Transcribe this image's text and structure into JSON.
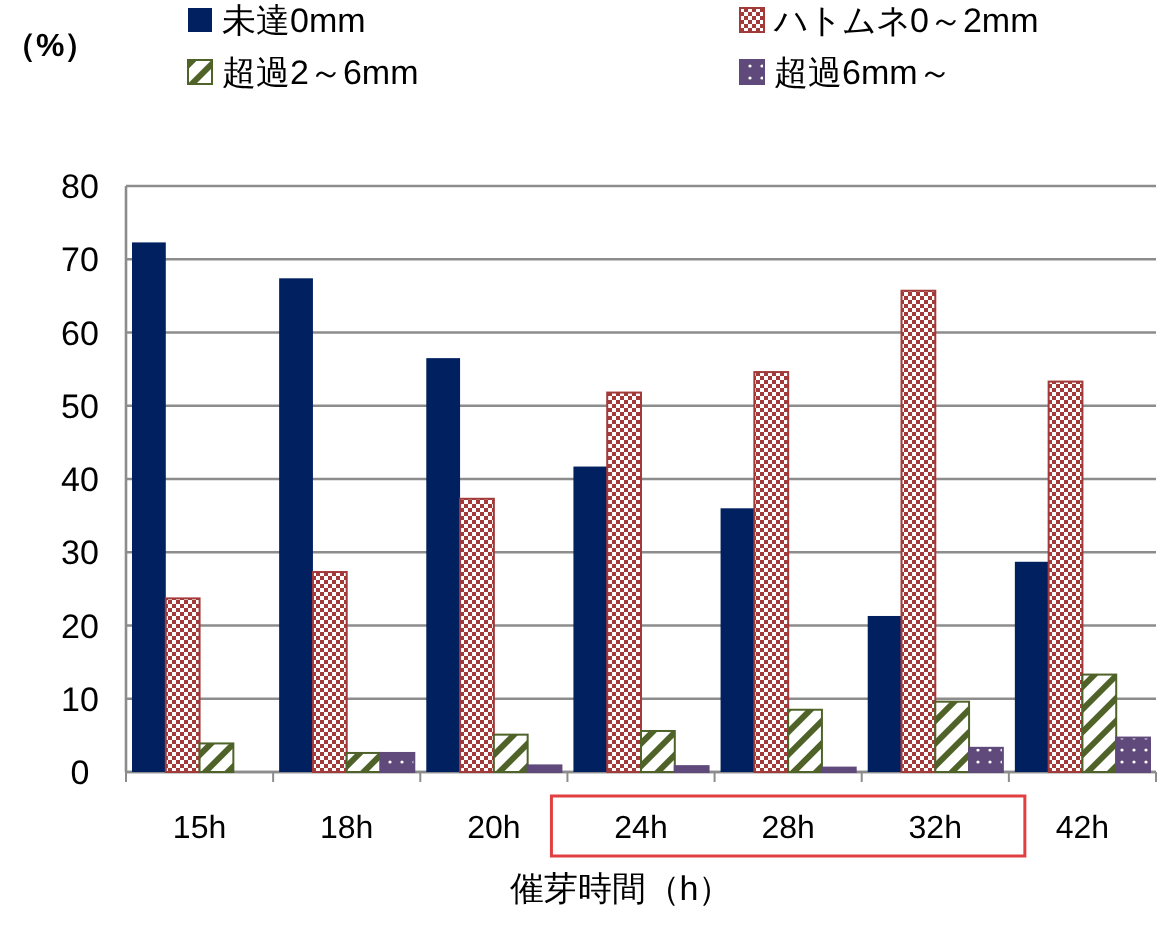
{
  "chart_data": {
    "type": "bar",
    "ylabel": "（%）",
    "xlabel": "催芽時間（h）",
    "categories": [
      "15h",
      "18h",
      "20h",
      "24h",
      "28h",
      "32h",
      "42h"
    ],
    "series": [
      {
        "name": "未達0mm",
        "color": "#002060",
        "values": [
          72.3,
          67.4,
          56.5,
          41.7,
          36.0,
          21.3,
          28.7
        ]
      },
      {
        "name": "ハトムネ0～2mm",
        "color": "#a33a3a",
        "values": [
          23.7,
          27.3,
          37.3,
          51.8,
          54.6,
          65.7,
          53.3
        ]
      },
      {
        "name": "超過2～6mm",
        "color": "#4f6228",
        "values": [
          3.9,
          2.6,
          5.1,
          5.6,
          8.5,
          9.6,
          13.3
        ]
      },
      {
        "name": "超過6mm～",
        "color": "#604a7b",
        "values": [
          0,
          2.6,
          0.9,
          0.8,
          0.6,
          3.3,
          4.7
        ]
      }
    ],
    "ylim": [
      0,
      80
    ],
    "yticks": [
      0,
      10,
      20,
      30,
      40,
      50,
      60,
      70,
      80
    ],
    "grid": "y",
    "legend": "top"
  }
}
